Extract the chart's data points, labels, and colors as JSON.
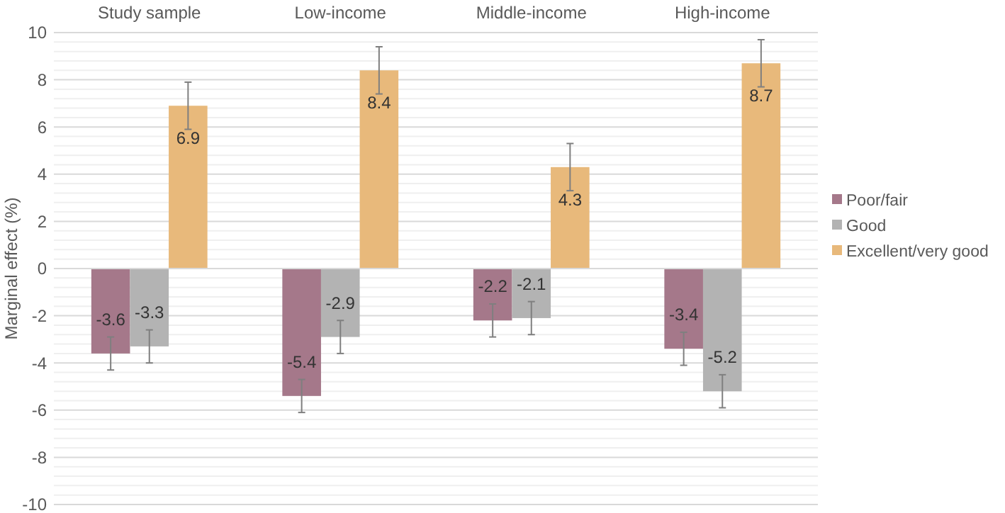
{
  "chart_data": {
    "type": "bar",
    "ylabel": "Marginal effect (%)",
    "categories": [
      "Study sample",
      "Low-income",
      "Middle-income",
      "High-income"
    ],
    "series": [
      {
        "name": "Poor/fair",
        "color": "#a5788a",
        "values": [
          -3.6,
          -5.4,
          -2.2,
          -3.4
        ],
        "errors": [
          0.7,
          0.7,
          0.7,
          0.7
        ]
      },
      {
        "name": "Good",
        "color": "#b3b3b3",
        "values": [
          -3.3,
          -2.9,
          -2.1,
          -5.2
        ],
        "errors": [
          0.7,
          0.7,
          0.7,
          0.7
        ]
      },
      {
        "name": "Excellent/very good",
        "color": "#e8b97b",
        "values": [
          6.9,
          8.4,
          4.3,
          8.7
        ],
        "errors": [
          1,
          1,
          1,
          1
        ]
      }
    ],
    "ylim": [
      -10,
      10
    ],
    "yticks": [
      -10,
      -8,
      -6,
      -4,
      -2,
      0,
      2,
      4,
      6,
      8,
      10
    ],
    "grid": "y",
    "legend": "right",
    "data_labels": true
  }
}
